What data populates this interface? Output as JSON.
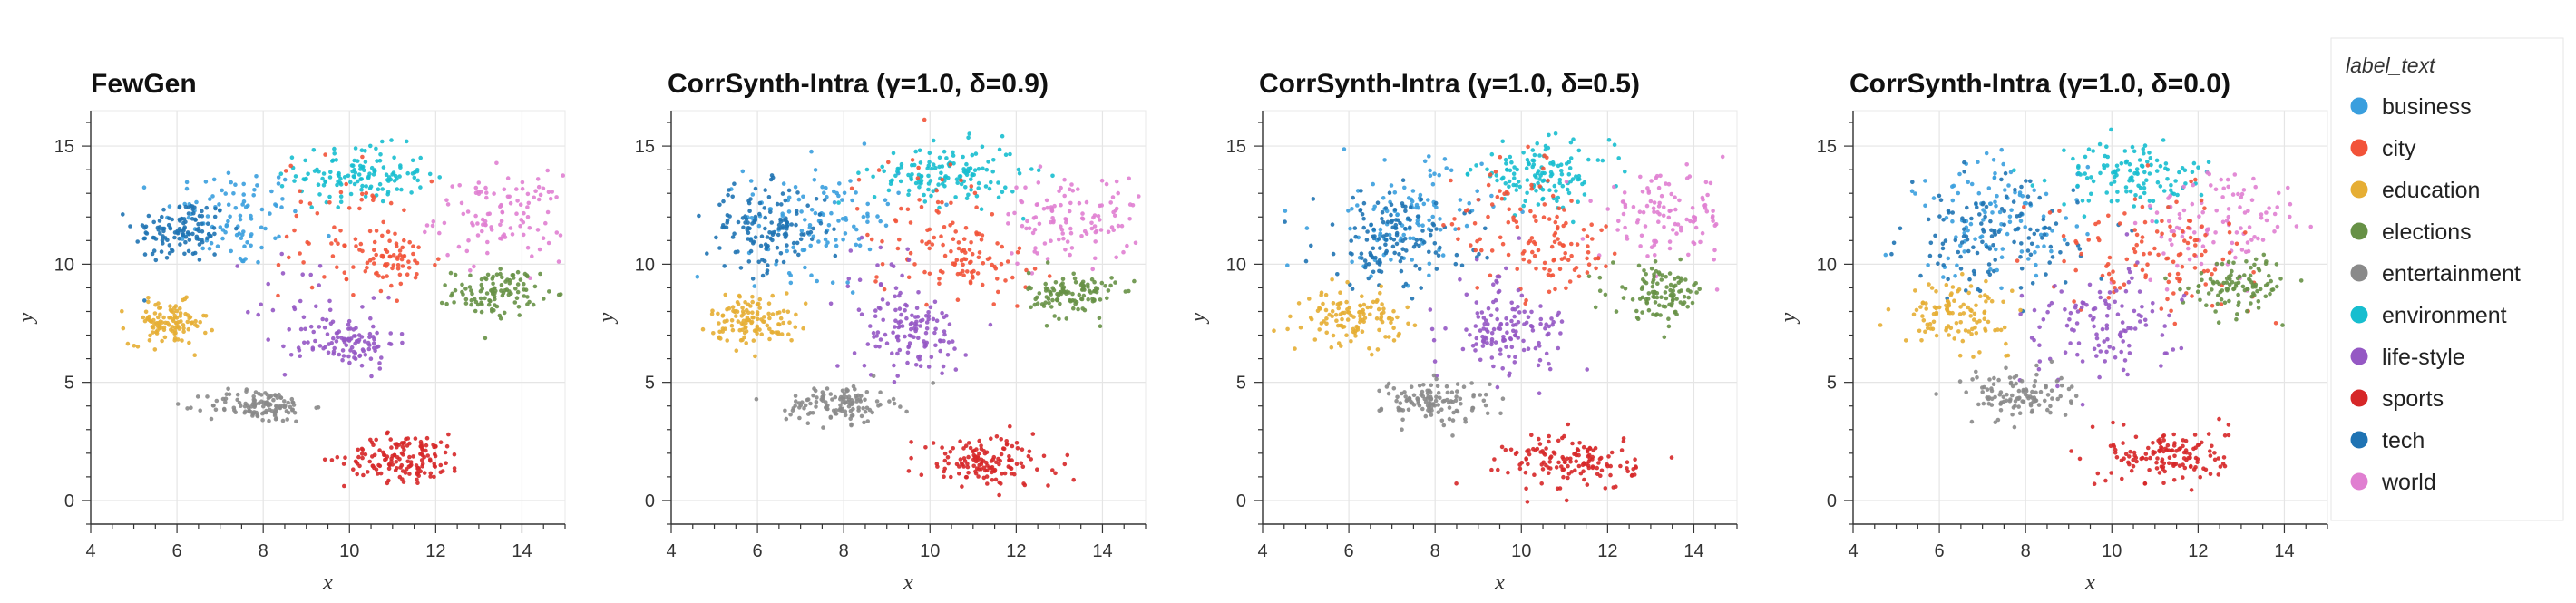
{
  "colors": {
    "business": "#3a9fde",
    "city": "#f25339",
    "education": "#e6ae34",
    "elections": "#679146",
    "entertainment": "#8a8a8a",
    "environment": "#17becf",
    "life-style": "#9558c4",
    "sports": "#d62728",
    "tech": "#1f73b3",
    "world": "#e07fd1"
  },
  "legend": {
    "title": "label_text",
    "items": [
      "business",
      "city",
      "education",
      "elections",
      "entertainment",
      "environment",
      "life-style",
      "sports",
      "tech",
      "world"
    ]
  },
  "chart_data": [
    {
      "type": "scatter",
      "title": "FewGen",
      "xlabel": "x",
      "ylabel": "y",
      "xlim": [
        4,
        15
      ],
      "ylim": [
        -1,
        16.5
      ],
      "xticks": [
        4,
        6,
        8,
        10,
        12,
        14
      ],
      "yticks": [
        0,
        5,
        10,
        15
      ],
      "grid": true,
      "clusters": [
        {
          "label": "business",
          "cx": 7.3,
          "cy": 12.0,
          "sx": 0.8,
          "sy": 1.1,
          "n": 95
        },
        {
          "label": "tech",
          "cx": 6.1,
          "cy": 11.4,
          "sx": 0.55,
          "sy": 0.7,
          "n": 120
        },
        {
          "label": "environment",
          "cx": 10.3,
          "cy": 13.8,
          "sx": 0.75,
          "sy": 0.6,
          "n": 130
        },
        {
          "label": "world",
          "cx": 13.5,
          "cy": 12.0,
          "sx": 0.75,
          "sy": 0.9,
          "n": 110
        },
        {
          "label": "city",
          "cx": 11.1,
          "cy": 10.1,
          "sx": 0.5,
          "sy": 0.6,
          "n": 60
        },
        {
          "label": "city",
          "cx": 9.8,
          "cy": 11.5,
          "sx": 0.7,
          "sy": 1.5,
          "n": 60
        },
        {
          "label": "elections",
          "cx": 13.4,
          "cy": 8.8,
          "sx": 0.5,
          "sy": 0.5,
          "n": 110
        },
        {
          "label": "education",
          "cx": 5.8,
          "cy": 7.5,
          "sx": 0.45,
          "sy": 0.45,
          "n": 110
        },
        {
          "label": "life-style",
          "cx": 10.0,
          "cy": 6.7,
          "sx": 0.55,
          "sy": 0.55,
          "n": 100
        },
        {
          "label": "life-style",
          "cx": 9.0,
          "cy": 8.2,
          "sx": 0.7,
          "sy": 1.3,
          "n": 30
        },
        {
          "label": "entertainment",
          "cx": 7.9,
          "cy": 4.0,
          "sx": 0.6,
          "sy": 0.35,
          "n": 120
        },
        {
          "label": "sports",
          "cx": 11.3,
          "cy": 1.8,
          "sx": 0.7,
          "sy": 0.5,
          "n": 150
        }
      ]
    },
    {
      "type": "scatter",
      "title": "CorrSynth-Intra (γ=1.0, δ=0.9)",
      "xlabel": "x",
      "ylabel": "y",
      "xlim": [
        4,
        15
      ],
      "ylim": [
        -1,
        16.5
      ],
      "xticks": [
        4,
        6,
        8,
        10,
        12,
        14
      ],
      "yticks": [
        0,
        5,
        10,
        15
      ],
      "grid": true,
      "clusters": [
        {
          "label": "business",
          "cx": 7.5,
          "cy": 12.0,
          "sx": 0.9,
          "sy": 1.2,
          "n": 110
        },
        {
          "label": "tech",
          "cx": 6.2,
          "cy": 11.5,
          "sx": 0.7,
          "sy": 0.9,
          "n": 140
        },
        {
          "label": "environment",
          "cx": 10.4,
          "cy": 13.8,
          "sx": 0.85,
          "sy": 0.65,
          "n": 140
        },
        {
          "label": "world",
          "cx": 13.3,
          "cy": 12.0,
          "sx": 0.8,
          "sy": 0.9,
          "n": 115
        },
        {
          "label": "city",
          "cx": 11.0,
          "cy": 10.2,
          "sx": 0.7,
          "sy": 0.8,
          "n": 70
        },
        {
          "label": "city",
          "cx": 9.8,
          "cy": 11.8,
          "sx": 0.8,
          "sy": 1.5,
          "n": 60
        },
        {
          "label": "elections",
          "cx": 13.3,
          "cy": 8.7,
          "sx": 0.5,
          "sy": 0.5,
          "n": 110
        },
        {
          "label": "education",
          "cx": 5.9,
          "cy": 7.7,
          "sx": 0.5,
          "sy": 0.55,
          "n": 120
        },
        {
          "label": "life-style",
          "cx": 9.6,
          "cy": 7.0,
          "sx": 0.65,
          "sy": 0.75,
          "n": 110
        },
        {
          "label": "life-style",
          "cx": 9.1,
          "cy": 8.8,
          "sx": 0.6,
          "sy": 1.2,
          "n": 30
        },
        {
          "label": "entertainment",
          "cx": 7.9,
          "cy": 4.1,
          "sx": 0.6,
          "sy": 0.4,
          "n": 120
        },
        {
          "label": "sports",
          "cx": 11.3,
          "cy": 1.6,
          "sx": 0.8,
          "sy": 0.55,
          "n": 140
        }
      ]
    },
    {
      "type": "scatter",
      "title": "CorrSynth-Intra (γ=1.0, δ=0.5)",
      "xlabel": "x",
      "ylabel": "y",
      "xlim": [
        4,
        15
      ],
      "ylim": [
        -1,
        16.5
      ],
      "xticks": [
        4,
        6,
        8,
        10,
        12,
        14
      ],
      "yticks": [
        0,
        5,
        10,
        15
      ],
      "grid": true,
      "clusters": [
        {
          "label": "business",
          "cx": 7.3,
          "cy": 12.0,
          "sx": 0.9,
          "sy": 1.2,
          "n": 110
        },
        {
          "label": "tech",
          "cx": 7.0,
          "cy": 11.0,
          "sx": 0.9,
          "sy": 1.0,
          "n": 140
        },
        {
          "label": "environment",
          "cx": 10.5,
          "cy": 13.8,
          "sx": 0.8,
          "sy": 0.65,
          "n": 130
        },
        {
          "label": "world",
          "cx": 13.3,
          "cy": 12.0,
          "sx": 0.75,
          "sy": 0.9,
          "n": 110
        },
        {
          "label": "city",
          "cx": 10.9,
          "cy": 10.3,
          "sx": 0.7,
          "sy": 0.8,
          "n": 70
        },
        {
          "label": "city",
          "cx": 9.8,
          "cy": 12.0,
          "sx": 0.8,
          "sy": 1.4,
          "n": 60
        },
        {
          "label": "elections",
          "cx": 13.2,
          "cy": 8.8,
          "sx": 0.55,
          "sy": 0.55,
          "n": 110
        },
        {
          "label": "education",
          "cx": 6.1,
          "cy": 7.7,
          "sx": 0.55,
          "sy": 0.55,
          "n": 120
        },
        {
          "label": "life-style",
          "cx": 9.7,
          "cy": 7.0,
          "sx": 0.7,
          "sy": 0.7,
          "n": 110
        },
        {
          "label": "life-style",
          "cx": 9.2,
          "cy": 8.8,
          "sx": 0.7,
          "sy": 1.2,
          "n": 30
        },
        {
          "label": "entertainment",
          "cx": 8.0,
          "cy": 4.2,
          "sx": 0.6,
          "sy": 0.45,
          "n": 120
        },
        {
          "label": "sports",
          "cx": 11.2,
          "cy": 1.6,
          "sx": 0.75,
          "sy": 0.6,
          "n": 140
        }
      ]
    },
    {
      "type": "scatter",
      "title": "CorrSynth-Intra (γ=1.0, δ=0.0)",
      "xlabel": "x",
      "ylabel": "y",
      "xlim": [
        4,
        15
      ],
      "ylim": [
        -1,
        16.5
      ],
      "xticks": [
        4,
        6,
        8,
        10,
        12,
        14
      ],
      "yticks": [
        0,
        5,
        10,
        15
      ],
      "grid": true,
      "clusters": [
        {
          "label": "business",
          "cx": 7.4,
          "cy": 12.0,
          "sx": 1.0,
          "sy": 1.3,
          "n": 110
        },
        {
          "label": "tech",
          "cx": 7.2,
          "cy": 11.0,
          "sx": 1.0,
          "sy": 1.2,
          "n": 130
        },
        {
          "label": "environment",
          "cx": 10.5,
          "cy": 13.8,
          "sx": 0.9,
          "sy": 0.7,
          "n": 120
        },
        {
          "label": "world",
          "cx": 12.6,
          "cy": 11.6,
          "sx": 1.0,
          "sy": 1.2,
          "n": 110
        },
        {
          "label": "city",
          "cx": 11.0,
          "cy": 10.5,
          "sx": 1.2,
          "sy": 1.2,
          "n": 120
        },
        {
          "label": "elections",
          "cx": 13.0,
          "cy": 9.2,
          "sx": 0.6,
          "sy": 0.6,
          "n": 100
        },
        {
          "label": "education",
          "cx": 6.4,
          "cy": 7.9,
          "sx": 0.6,
          "sy": 0.65,
          "n": 110
        },
        {
          "label": "life-style",
          "cx": 9.7,
          "cy": 7.3,
          "sx": 0.9,
          "sy": 1.2,
          "n": 120
        },
        {
          "label": "entertainment",
          "cx": 7.8,
          "cy": 4.5,
          "sx": 0.6,
          "sy": 0.5,
          "n": 110
        },
        {
          "label": "sports",
          "cx": 11.3,
          "cy": 1.9,
          "sx": 0.7,
          "sy": 0.6,
          "n": 140
        }
      ]
    }
  ]
}
